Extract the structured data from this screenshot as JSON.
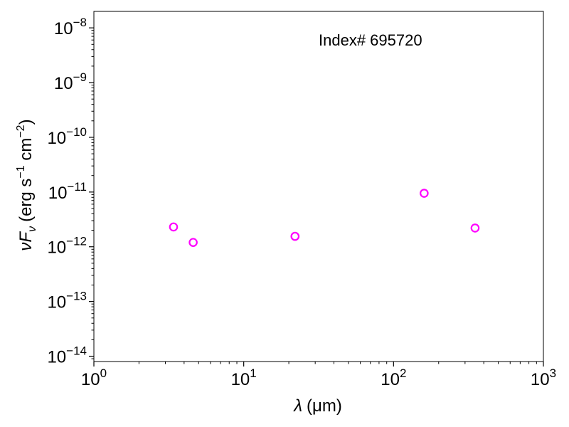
{
  "chart_data": {
    "type": "scatter",
    "title": "",
    "annotation": "Index# 695720",
    "xlabel": {
      "symbol": "λ",
      "unit": "(μm)"
    },
    "ylabel": {
      "symbol": "νF",
      "subscript": "ν",
      "unit_prefix": "(erg s",
      "unit_exp1": "−1",
      "unit_mid": " cm",
      "unit_exp2": "−2",
      "unit_suffix": ")"
    },
    "x_scale": "log",
    "y_scale": "log",
    "xlim": [
      1,
      1000
    ],
    "ylim": [
      8e-15,
      2e-08
    ],
    "x_ticks": [
      {
        "value": 1,
        "base": "10",
        "exp": "0"
      },
      {
        "value": 10,
        "base": "10",
        "exp": "1"
      },
      {
        "value": 100,
        "base": "10",
        "exp": "2"
      },
      {
        "value": 1000,
        "base": "10",
        "exp": "3"
      }
    ],
    "y_ticks": [
      {
        "value": 1e-14,
        "base": "10",
        "exp": "−14"
      },
      {
        "value": 1e-13,
        "base": "10",
        "exp": "−13"
      },
      {
        "value": 1e-12,
        "base": "10",
        "exp": "−12"
      },
      {
        "value": 1e-11,
        "base": "10",
        "exp": "−11"
      },
      {
        "value": 1e-10,
        "base": "10",
        "exp": "−10"
      },
      {
        "value": 1e-09,
        "base": "10",
        "exp": "−9"
      },
      {
        "value": 1e-08,
        "base": "10",
        "exp": "−8"
      }
    ],
    "grid": false,
    "series": [
      {
        "marker": "open-circle",
        "color": "#ff00ff",
        "points": [
          {
            "x": 3.4,
            "y": 2.3e-12
          },
          {
            "x": 4.6,
            "y": 1.2e-12
          },
          {
            "x": 22,
            "y": 1.55e-12
          },
          {
            "x": 160,
            "y": 9.5e-12
          },
          {
            "x": 350,
            "y": 2.2e-12
          }
        ]
      }
    ]
  }
}
